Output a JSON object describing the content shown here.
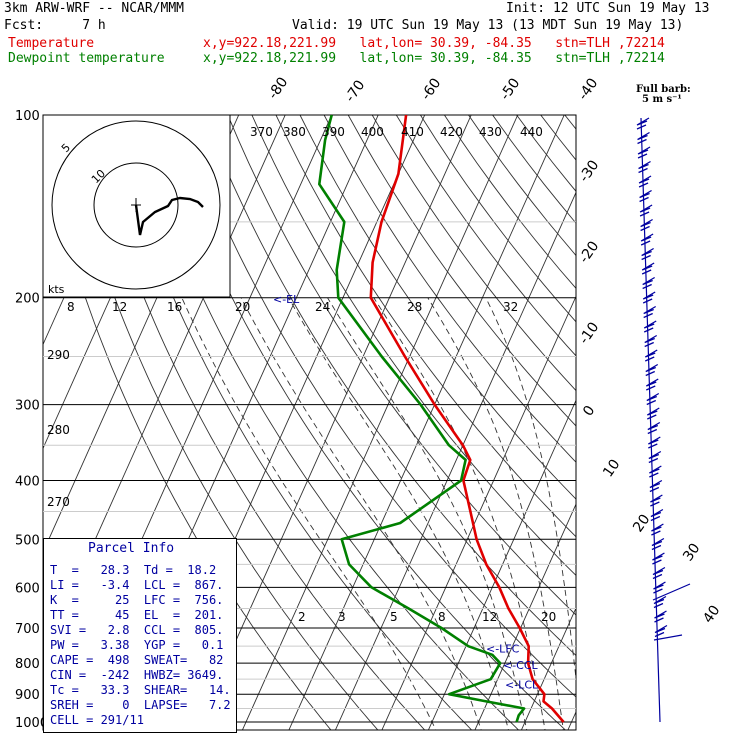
{
  "header": {
    "model": "3km ARW-WRF -- NCAR/MMM",
    "init": "Init: 12 UTC Sun 19 May 13",
    "fcst": "Fcst:     7 h",
    "valid": "Valid: 19 UTC Sun 19 May 13 (13 MDT Sun 19 May 13)",
    "temp_label": "Temperature",
    "temp_loc": "x,y=922.18,221.99   lat,lon= 30.39, -84.35   stn=TLH ,72214",
    "dew_label": "Dewpoint temperature",
    "dew_loc": "x,y=922.18,221.99   lat,lon= 30.39, -84.35   stn=TLH ,72214",
    "full_barb": "Full barb:",
    "barb_speed": "5 m s⁻¹"
  },
  "colors": {
    "temperature": "#e00000",
    "dewpoint": "#008000",
    "params": "#0000a0",
    "wind": "#0000a0"
  },
  "pressure_labels": [
    "100",
    "200",
    "300",
    "400",
    "500",
    "600",
    "700",
    "800",
    "900",
    "1000"
  ],
  "theta_labels": [
    "370",
    "380",
    "390",
    "400",
    "410",
    "420",
    "430",
    "440"
  ],
  "theta_left_labels": [
    "290",
    "280",
    "270"
  ],
  "mixing_labels": [
    "8",
    "12",
    "16",
    "20",
    "24",
    "28",
    "32"
  ],
  "mixing_low_labels": [
    "2",
    "3",
    "5",
    "8",
    "12",
    "20"
  ],
  "skew_labels": [
    "-80",
    "-70",
    "-60",
    "-50",
    "-40",
    "-30",
    "-20",
    "-10",
    "0",
    "10",
    "20",
    "30",
    "40"
  ],
  "hodograph": {
    "units": "kts",
    "ring_labels": [
      "5",
      "10"
    ]
  },
  "parcel_markers": {
    "el": "<-EL",
    "lfc": "<-LFC",
    "ccl": "<-CCL",
    "lcl": "<-LCL"
  },
  "parcel_info": {
    "title": "Parcel Info",
    "rows": [
      "T  =   28.3  Td =  18.2",
      "LI =   -3.4  LCL =  867.",
      "K  =     25  LFC =  756.",
      "TT =     45  EL  =  201.",
      "SVI =   2.8  CCL =  805.",
      "PW =   3.38  YGP =   0.1",
      "CAPE =  498  SWEAT=   82",
      "CIN =  -242  HWBZ= 3649.",
      "Tc =   33.3  SHEAR=   14.",
      "SREH =    0  LAPSE=   7.2",
      "CELL = 291/11"
    ]
  },
  "chart_data": {
    "type": "line",
    "title": "",
    "xlabel": "",
    "ylabel": "",
    "ylim": [
      1000,
      100
    ],
    "y_scale": "log",
    "series": [
      {
        "name": "Temperature",
        "points": [
          [
            1000,
            28.3
          ],
          [
            950,
            24.5
          ],
          [
            925,
            22.0
          ],
          [
            900,
            21.5
          ],
          [
            850,
            17.5
          ],
          [
            800,
            15.0
          ],
          [
            750,
            13.5
          ],
          [
            700,
            9.8
          ],
          [
            650,
            5.5
          ],
          [
            600,
            1.5
          ],
          [
            550,
            -3.5
          ],
          [
            500,
            -8.0
          ],
          [
            450,
            -12.0
          ],
          [
            400,
            -16.5
          ],
          [
            370,
            -17.0
          ],
          [
            350,
            -20.0
          ],
          [
            300,
            -30.0
          ],
          [
            250,
            -41.0
          ],
          [
            200,
            -54.0
          ],
          [
            175,
            -57.0
          ],
          [
            150,
            -59.0
          ],
          [
            125,
            -60.0
          ],
          [
            100,
            -64.0
          ]
        ]
      },
      {
        "name": "Dewpoint temperature",
        "points": [
          [
            1000,
            18.2
          ],
          [
            975,
            18.0
          ],
          [
            950,
            18.5
          ],
          [
            920,
            8.0
          ],
          [
            900,
            1.0
          ],
          [
            850,
            8.5
          ],
          [
            800,
            9.0
          ],
          [
            775,
            6.5
          ],
          [
            750,
            0.5
          ],
          [
            700,
            -7.0
          ],
          [
            650,
            -16.0
          ],
          [
            600,
            -26.0
          ],
          [
            550,
            -33.0
          ],
          [
            500,
            -37.0
          ],
          [
            470,
            -26.0
          ],
          [
            400,
            -17.0
          ],
          [
            370,
            -18.0
          ],
          [
            350,
            -23.0
          ],
          [
            300,
            -33.0
          ],
          [
            250,
            -46.0
          ],
          [
            200,
            -61.0
          ],
          [
            180,
            -64.0
          ],
          [
            150,
            -67.0
          ],
          [
            130,
            -76.0
          ],
          [
            110,
            -79.0
          ],
          [
            100,
            -80.0
          ]
        ]
      }
    ]
  }
}
